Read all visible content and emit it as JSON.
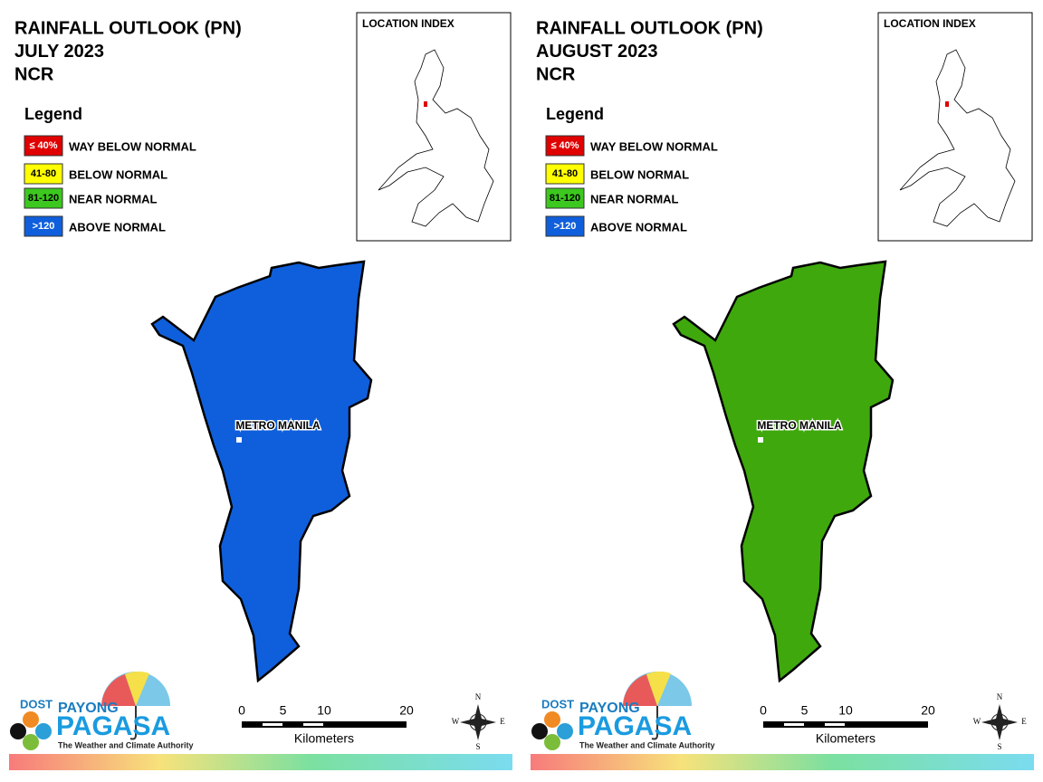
{
  "panels": [
    {
      "title": [
        "RAINFALL OUTLOOK (PN)",
        "JULY 2023",
        "NCR"
      ],
      "legend": {
        "title": "Legend",
        "items": [
          {
            "label": "≤ 40%",
            "text": "WAY BELOW NORMAL",
            "color": "#e00000"
          },
          {
            "label": "41-80",
            "text": "BELOW NORMAL",
            "color": "#ffff00"
          },
          {
            "label": "81-120",
            "text": "NEAR NORMAL",
            "color": "#3cc81e"
          },
          {
            "label": ">120",
            "text": "ABOVE NORMAL",
            "color": "#0f5fdc"
          }
        ]
      },
      "location_index": "LOCATION INDEX",
      "region": {
        "label": "METRO MANILA",
        "color": "#0f5fdc"
      },
      "scale": {
        "ticks": [
          0,
          5,
          10,
          20
        ],
        "unit": "Kilometers"
      },
      "compass": {
        "n": "N",
        "e": "E",
        "s": "S",
        "w": "W"
      },
      "logo": {
        "dost": "DOST",
        "payong": "PAYONG",
        "pagasa": "PAGASA",
        "tagline": "The Weather and Climate Authority"
      }
    },
    {
      "title": [
        "RAINFALL OUTLOOK (PN)",
        "AUGUST 2023",
        "NCR"
      ],
      "legend": {
        "title": "Legend",
        "items": [
          {
            "label": "≤ 40%",
            "text": "WAY BELOW NORMAL",
            "color": "#e00000"
          },
          {
            "label": "41-80",
            "text": "BELOW NORMAL",
            "color": "#ffff00"
          },
          {
            "label": "81-120",
            "text": "NEAR NORMAL",
            "color": "#3cc81e"
          },
          {
            "label": ">120",
            "text": "ABOVE NORMAL",
            "color": "#0f5fdc"
          }
        ]
      },
      "location_index": "LOCATION INDEX",
      "region": {
        "label": "METRO MANILA",
        "color": "#3fa80d"
      },
      "scale": {
        "ticks": [
          0,
          5,
          10,
          20
        ],
        "unit": "Kilometers"
      },
      "compass": {
        "n": "N",
        "e": "E",
        "s": "S",
        "w": "W"
      },
      "logo": {
        "dost": "DOST",
        "payong": "PAYONG",
        "pagasa": "PAGASA",
        "tagline": "The Weather and Climate Authority"
      }
    }
  ]
}
